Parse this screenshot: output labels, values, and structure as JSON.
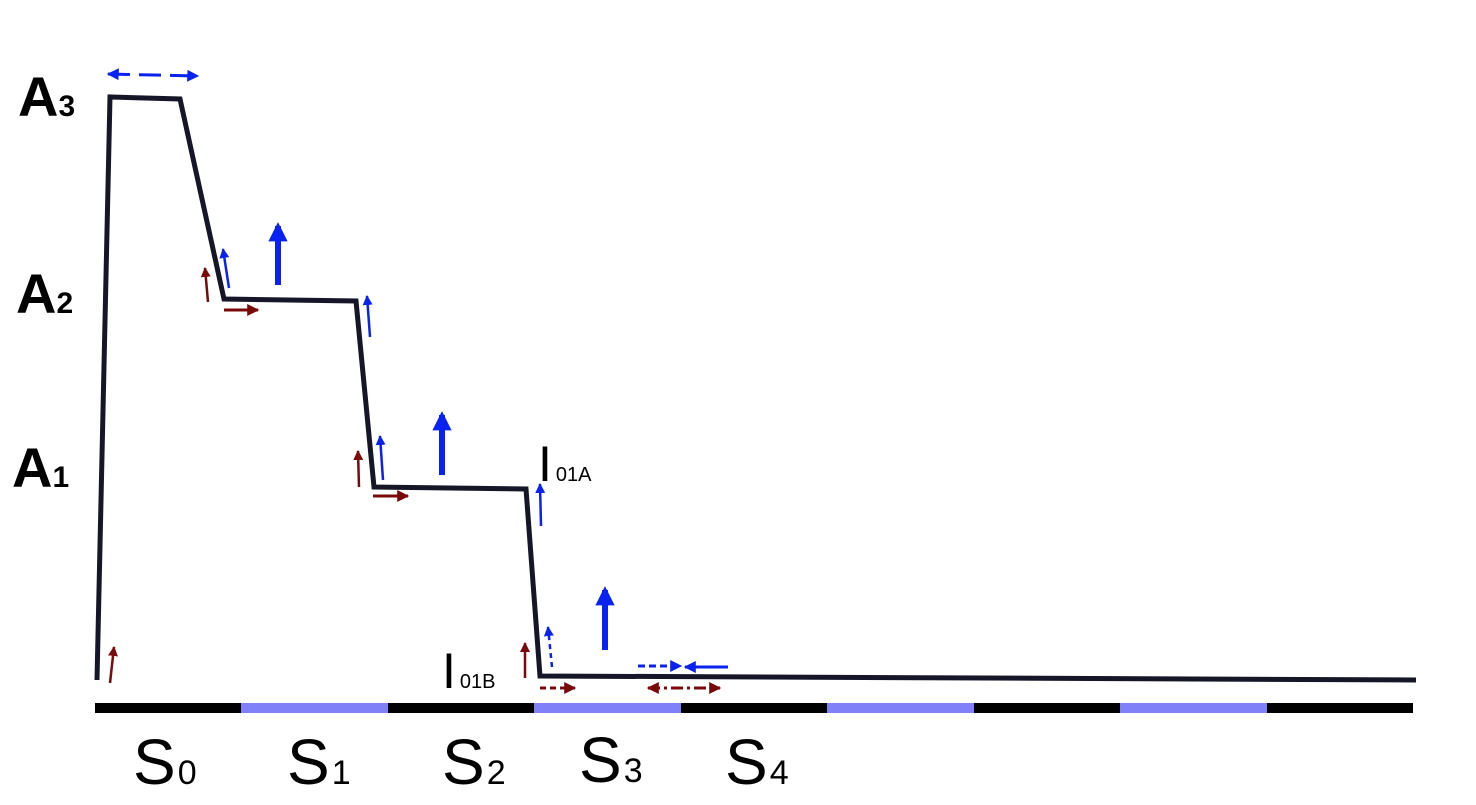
{
  "levels": [
    {
      "id": "A3",
      "main": "A",
      "sub": "3"
    },
    {
      "id": "A2",
      "main": "A",
      "sub": "2"
    },
    {
      "id": "A1",
      "main": "A",
      "sub": "1"
    }
  ],
  "intermediates": [
    {
      "id": "I01A",
      "main": "I",
      "sub": "01A"
    },
    {
      "id": "I01B",
      "main": "I",
      "sub": "01B"
    }
  ],
  "segments": [
    {
      "id": "S0",
      "main": "S",
      "sub": "0"
    },
    {
      "id": "S1",
      "main": "S",
      "sub": "1"
    },
    {
      "id": "S2",
      "main": "S",
      "sub": "2"
    },
    {
      "id": "S3",
      "main": "S",
      "sub": "3"
    },
    {
      "id": "S4",
      "main": "S",
      "sub": "4"
    }
  ],
  "colors": {
    "profile_line": "#161629",
    "axis_dark": "#000000",
    "axis_light": "#8080f8",
    "arrow_blue": "#0a22f0",
    "arrow_red": "#7a0a0a"
  }
}
